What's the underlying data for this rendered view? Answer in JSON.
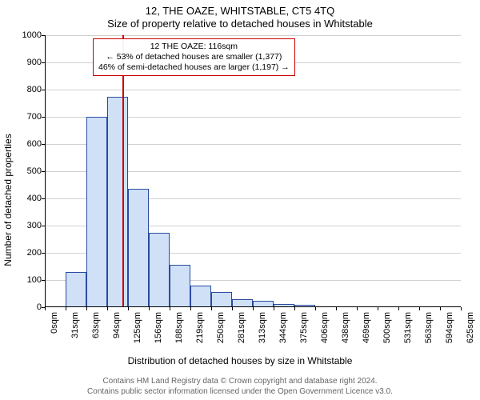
{
  "title_line1": "12, THE OAZE, WHITSTABLE, CT5 4TQ",
  "title_line2": "Size of property relative to detached houses in Whitstable",
  "y_axis_label": "Number of detached properties",
  "x_axis_label": "Distribution of detached houses by size in Whitstable",
  "credits_line1": "Contains HM Land Registry data © Crown copyright and database right 2024.",
  "credits_line2": "Contains public sector information licensed under the Open Government Licence v3.0.",
  "annot_line1": "12 THE OAZE: 116sqm",
  "annot_line2": "← 53% of detached houses are smaller (1,377)",
  "annot_line3": "46% of semi-detached houses are larger (1,197) →",
  "chart": {
    "type": "histogram",
    "ylim": [
      0,
      1000
    ],
    "ytick_step": 100,
    "bin_width_sqm": 31.25,
    "xticks": [
      0,
      31,
      63,
      94,
      125,
      156,
      188,
      219,
      250,
      281,
      313,
      344,
      375,
      406,
      438,
      469,
      500,
      531,
      563,
      594,
      625
    ],
    "xtick_unit": "sqm",
    "values": [
      0,
      130,
      700,
      775,
      435,
      275,
      155,
      80,
      55,
      30,
      25,
      12,
      8,
      0,
      0,
      0,
      0,
      0,
      0,
      0
    ],
    "bar_fill": "#cfe0f7",
    "bar_border": "#2a4aa0",
    "grid_color": "#d0d0d0",
    "background": "#ffffff",
    "marker_value_sqm": 116,
    "marker_color": "#cc0000",
    "annot_border": "#cc0000",
    "title_fontsize": 13,
    "label_fontsize": 12,
    "tick_fontsize": 11
  }
}
